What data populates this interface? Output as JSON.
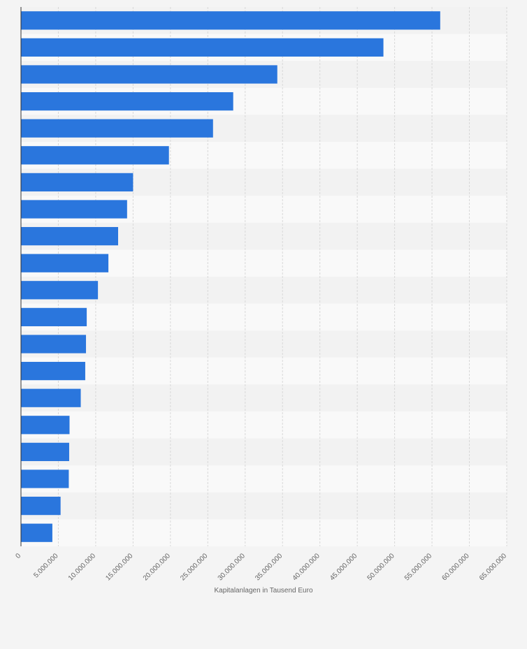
{
  "chart_data": {
    "type": "bar",
    "orientation": "horizontal",
    "x_label": "Kapitalanlagen in Tausend Euro",
    "categories": [
      null,
      null,
      null,
      null,
      null,
      null,
      null,
      null,
      null,
      null,
      null,
      null,
      null,
      null,
      null,
      null,
      null,
      null,
      null,
      null
    ],
    "values": [
      56100000,
      48500000,
      34300000,
      28400000,
      25700000,
      19800000,
      15000000,
      14200000,
      13000000,
      11700000,
      10300000,
      8800000,
      8700000,
      8600000,
      8000000,
      6500000,
      6450000,
      6400000,
      5300000,
      4200000
    ],
    "color": "#2a76dd",
    "xlim": [
      0,
      65000000
    ],
    "xticks": [
      0,
      {
        "value": 5000000,
        "label": "5.000.000"
      },
      {
        "value": 10000000,
        "label": "10.000.000"
      },
      {
        "value": 15000000,
        "label": "15.000.000"
      },
      {
        "value": 20000000,
        "label": "20.000.000"
      },
      {
        "value": 25000000,
        "label": "25.000.000"
      },
      {
        "value": 30000000,
        "label": "30.000.000"
      },
      {
        "value": 35000000,
        "label": "35.000.000"
      },
      {
        "value": 40000000,
        "label": "40.000.000"
      },
      {
        "value": 45000000,
        "label": "45.000.000"
      },
      {
        "value": 50000000,
        "label": "50.000.000"
      },
      {
        "value": 55000000,
        "label": "55.000.000"
      },
      {
        "value": 60000000,
        "label": "60.000.000"
      },
      {
        "value": 65000000,
        "label": "65.000.000"
      }
    ],
    "grid": true
  }
}
